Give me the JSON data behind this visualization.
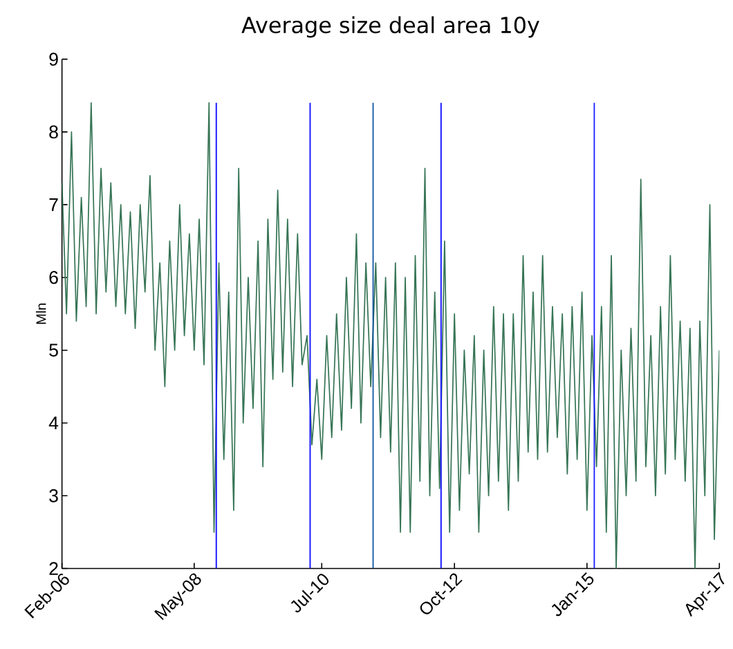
{
  "chart_data": {
    "type": "line",
    "title": "Average size deal area 10y",
    "ylabel": "Mln",
    "x": [
      "2006-02",
      "2006-03",
      "2006-04",
      "2006-05",
      "2006-06",
      "2006-07",
      "2006-08",
      "2006-09",
      "2006-10",
      "2006-11",
      "2006-12",
      "2007-01",
      "2007-02",
      "2007-03",
      "2007-04",
      "2007-05",
      "2007-06",
      "2007-07",
      "2007-08",
      "2007-09",
      "2007-10",
      "2007-11",
      "2007-12",
      "2008-01",
      "2008-02",
      "2008-03",
      "2008-04",
      "2008-05",
      "2008-06",
      "2008-07",
      "2008-08",
      "2008-09",
      "2008-10",
      "2008-11",
      "2008-12",
      "2009-01",
      "2009-02",
      "2009-03",
      "2009-04",
      "2009-05",
      "2009-06",
      "2009-07",
      "2009-08",
      "2009-09",
      "2009-10",
      "2009-11",
      "2009-12",
      "2010-01",
      "2010-02",
      "2010-03",
      "2010-04",
      "2010-05",
      "2010-06",
      "2010-07",
      "2010-08",
      "2010-09",
      "2010-10",
      "2010-11",
      "2010-12",
      "2011-01",
      "2011-02",
      "2011-03",
      "2011-04",
      "2011-05",
      "2011-06",
      "2011-07",
      "2011-08",
      "2011-09",
      "2011-10",
      "2011-11",
      "2011-12",
      "2012-01",
      "2012-02",
      "2012-03",
      "2012-04",
      "2012-05",
      "2012-06",
      "2012-07",
      "2012-08",
      "2012-09",
      "2012-10",
      "2012-11",
      "2012-12",
      "2013-01",
      "2013-02",
      "2013-03",
      "2013-04",
      "2013-05",
      "2013-06",
      "2013-07",
      "2013-08",
      "2013-09",
      "2013-10",
      "2013-11",
      "2013-12",
      "2014-01",
      "2014-02",
      "2014-03",
      "2014-04",
      "2014-05",
      "2014-06",
      "2014-07",
      "2014-08",
      "2014-09",
      "2014-10",
      "2014-11",
      "2014-12",
      "2015-01",
      "2015-02",
      "2015-03",
      "2015-04",
      "2015-05",
      "2015-06",
      "2015-07",
      "2015-08",
      "2015-09",
      "2015-10",
      "2015-11",
      "2015-12",
      "2016-01",
      "2016-02",
      "2016-03",
      "2016-04",
      "2016-05",
      "2016-06",
      "2016-07",
      "2016-08",
      "2016-09",
      "2016-10",
      "2016-11",
      "2016-12",
      "2017-01",
      "2017-02",
      "2017-03",
      "2017-04"
    ],
    "series": [
      {
        "color": "#377556",
        "values": [
          7.3,
          5.5,
          8.0,
          5.4,
          7.1,
          5.6,
          8.4,
          5.5,
          7.5,
          5.8,
          7.3,
          5.6,
          7.0,
          5.5,
          6.9,
          5.3,
          7.0,
          5.8,
          7.4,
          5.0,
          6.2,
          4.5,
          6.5,
          5.0,
          7.0,
          5.2,
          6.6,
          5.0,
          6.8,
          4.8,
          8.4,
          2.5,
          6.2,
          3.5,
          5.8,
          2.8,
          7.5,
          4.0,
          6.0,
          4.2,
          6.5,
          3.4,
          6.8,
          4.6,
          7.2,
          4.7,
          6.8,
          4.5,
          6.6,
          4.8,
          5.2,
          3.7,
          4.6,
          3.5,
          5.2,
          3.8,
          5.5,
          3.9,
          6.0,
          4.2,
          6.6,
          4.0,
          6.2,
          4.5,
          6.2,
          3.8,
          6.0,
          3.6,
          6.2,
          2.5,
          6.0,
          2.5,
          6.3,
          3.2,
          7.5,
          3.0,
          5.8,
          3.1,
          6.5,
          2.5,
          5.5,
          2.8,
          5.0,
          3.3,
          5.2,
          2.5,
          5.0,
          3.0,
          5.6,
          3.2,
          5.5,
          2.8,
          5.5,
          3.2,
          6.3,
          3.6,
          5.8,
          3.5,
          6.3,
          3.6,
          5.6,
          3.8,
          5.5,
          3.3,
          5.6,
          3.5,
          5.8,
          2.8,
          5.2,
          3.4,
          5.6,
          2.5,
          6.3,
          2.0,
          5.0,
          3.0,
          5.3,
          3.2,
          7.35,
          3.4,
          5.2,
          3.0,
          5.6,
          3.3,
          6.3,
          3.5,
          5.4,
          3.2,
          5.3,
          2.0,
          5.4,
          3.0,
          7.0,
          2.4,
          5.0
        ]
      }
    ],
    "xlim": [
      "2006-02-01",
      "2017-04-01"
    ],
    "xticks": [
      {
        "value": "2006-02-01",
        "label": "Feb-06"
      },
      {
        "value": "2008-05-01",
        "label": "May-08"
      },
      {
        "value": "2010-07-01",
        "label": "Jul-10"
      },
      {
        "value": "2012-10-01",
        "label": "Oct-12"
      },
      {
        "value": "2015-01-01",
        "label": "Jan-15"
      },
      {
        "value": "2017-04-01",
        "label": "Apr-17"
      }
    ],
    "ylim": [
      2,
      9
    ],
    "yticks": [
      2,
      3,
      4,
      5,
      6,
      7,
      8,
      9
    ],
    "ref_lines": [
      {
        "axis": "x",
        "value": "2008-09-15",
        "color": "#1a1aff"
      },
      {
        "axis": "x",
        "value": "2010-04-20",
        "color": "#1a1aff"
      },
      {
        "axis": "x",
        "value": "2011-05-15",
        "color": "#0a4fa0"
      },
      {
        "axis": "x",
        "value": "2012-07-10",
        "color": "#1a1aff"
      },
      {
        "axis": "x",
        "value": "2015-02-15",
        "color": "#1a1aff"
      }
    ]
  }
}
